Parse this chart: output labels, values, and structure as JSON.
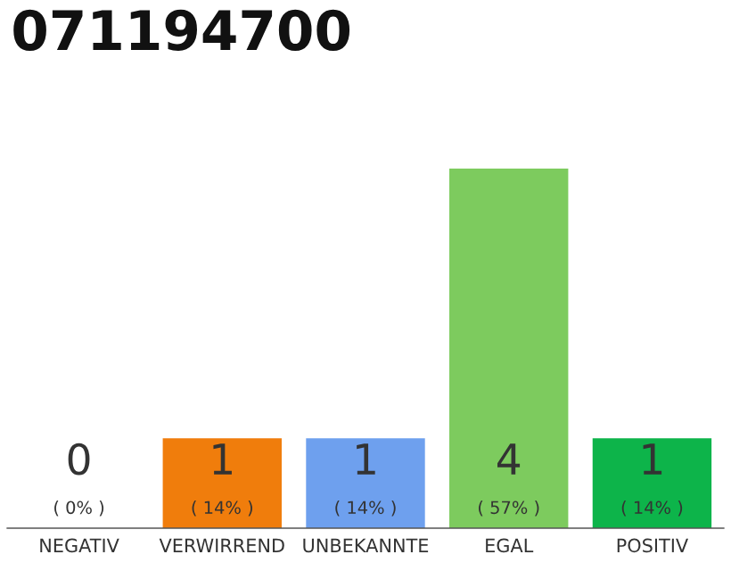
{
  "chart_data": {
    "type": "bar",
    "title": "071194700",
    "categories": [
      "NEGATIV",
      "VERWIRREND",
      "UNBEKANNTE",
      "EGAL",
      "POSITIV"
    ],
    "values": [
      0,
      1,
      1,
      4,
      1
    ],
    "colors": [
      "#aaaaaa",
      "#f07d0c",
      "#6ea0ee",
      "#7dcb5e",
      "#0db44a"
    ],
    "value_labels": [
      "0\n( 0% )",
      "1\n( 14% )",
      "1\n( 14% )",
      "4\n( 57% )",
      "1\n( 14% )"
    ],
    "ylim": [
      0,
      4
    ],
    "tick_labels": "x",
    "grid": false,
    "legend": false
  }
}
